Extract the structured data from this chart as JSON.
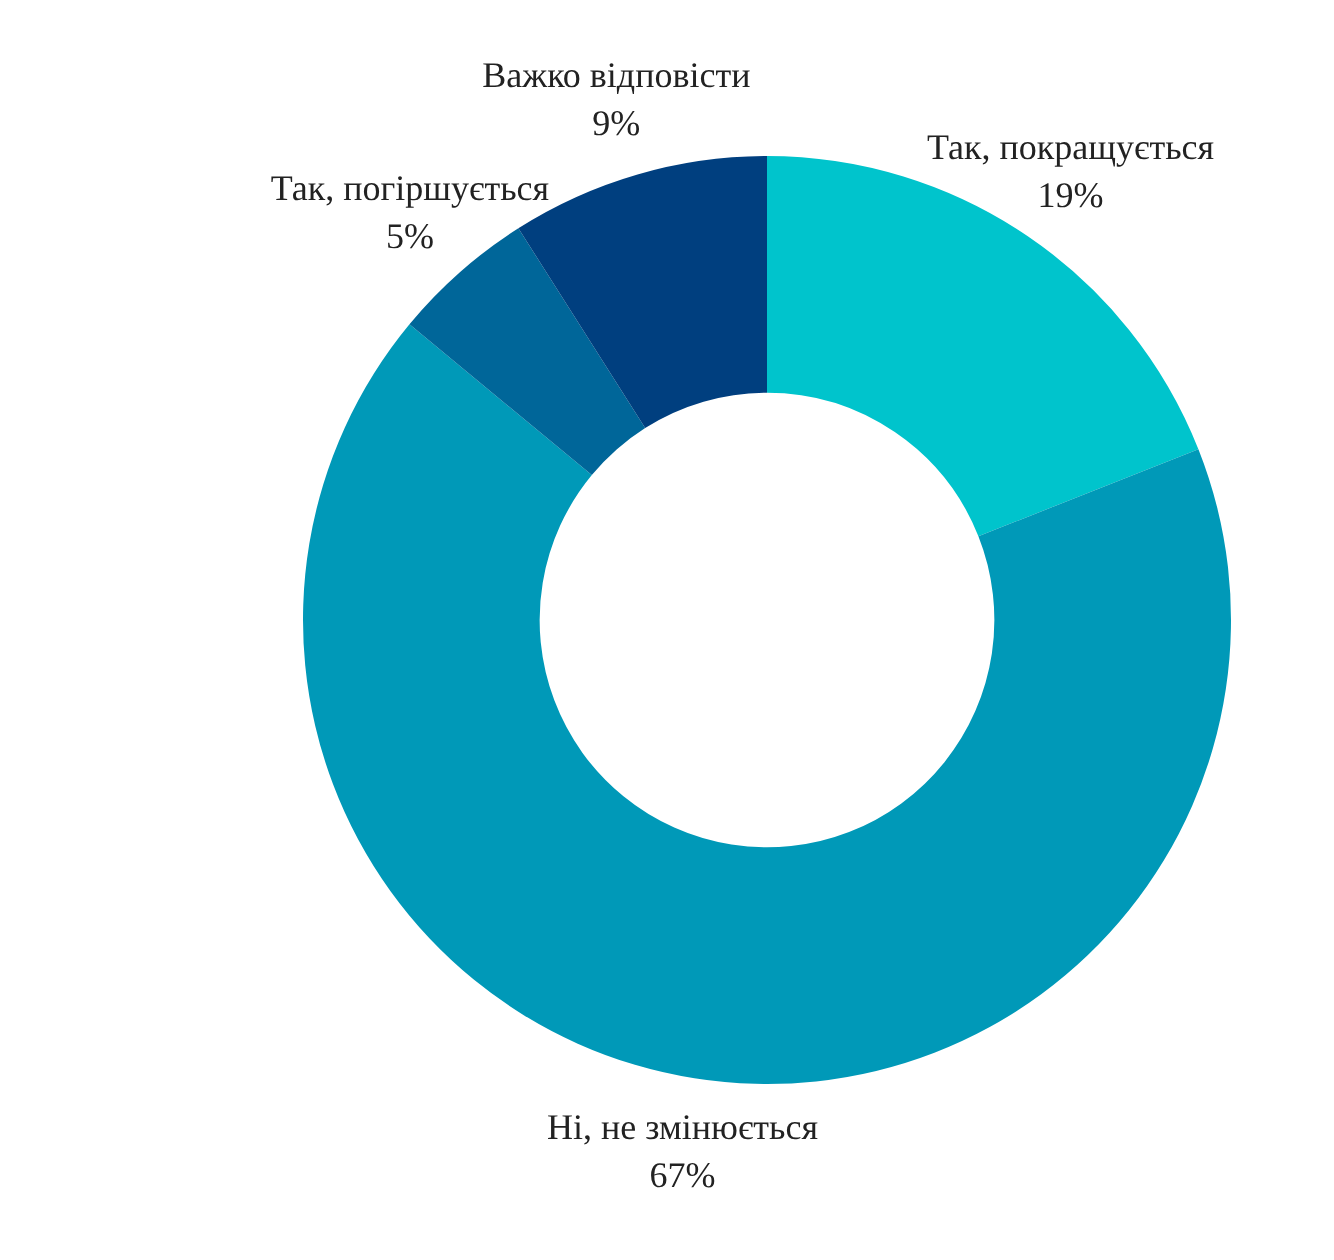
{
  "chart_data": {
    "type": "donut",
    "categories": [
      "Так, покращується",
      "Ні, не змінюється",
      "Так, погіршується",
      "Важко відповісти"
    ],
    "values": [
      19,
      67,
      5,
      9
    ],
    "value_labels": [
      "19%",
      "67%",
      "5%",
      "9%"
    ],
    "colors": [
      "#00c4cc",
      "#0099b8",
      "#006699",
      "#003f7f"
    ],
    "legend": false
  }
}
